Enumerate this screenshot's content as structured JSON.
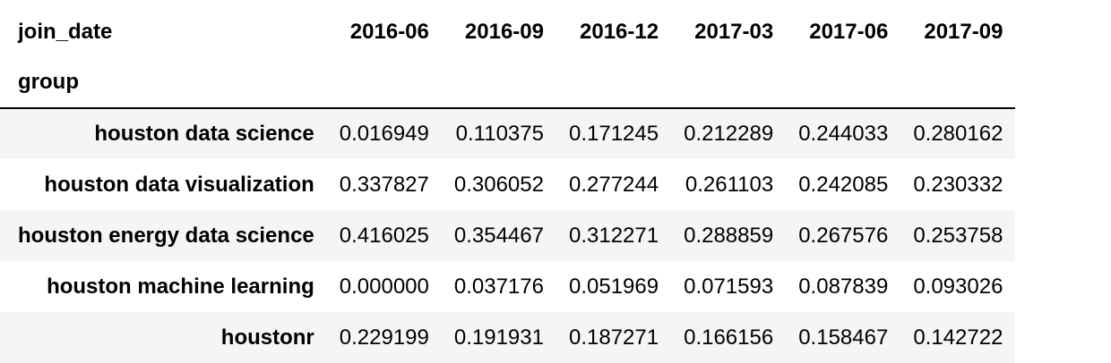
{
  "table": {
    "column_axis_name": "join_date",
    "index_name": "group",
    "columns": [
      "2016-06",
      "2016-09",
      "2016-12",
      "2017-03",
      "2017-06",
      "2017-09"
    ],
    "rows": [
      {
        "label": "houston data science",
        "values": [
          "0.016949",
          "0.110375",
          "0.171245",
          "0.212289",
          "0.244033",
          "0.280162"
        ]
      },
      {
        "label": "houston data visualization",
        "values": [
          "0.337827",
          "0.306052",
          "0.277244",
          "0.261103",
          "0.242085",
          "0.230332"
        ]
      },
      {
        "label": "houston energy data science",
        "values": [
          "0.416025",
          "0.354467",
          "0.312271",
          "0.288859",
          "0.267576",
          "0.253758"
        ]
      },
      {
        "label": "houston machine learning",
        "values": [
          "0.000000",
          "0.037176",
          "0.051969",
          "0.071593",
          "0.087839",
          "0.093026"
        ]
      },
      {
        "label": "houstonr",
        "values": [
          "0.229199",
          "0.191931",
          "0.187271",
          "0.166156",
          "0.158467",
          "0.142722"
        ]
      }
    ]
  },
  "colors": {
    "stripe": "#f5f5f5",
    "header_rule": "#000000",
    "text": "#000000"
  }
}
